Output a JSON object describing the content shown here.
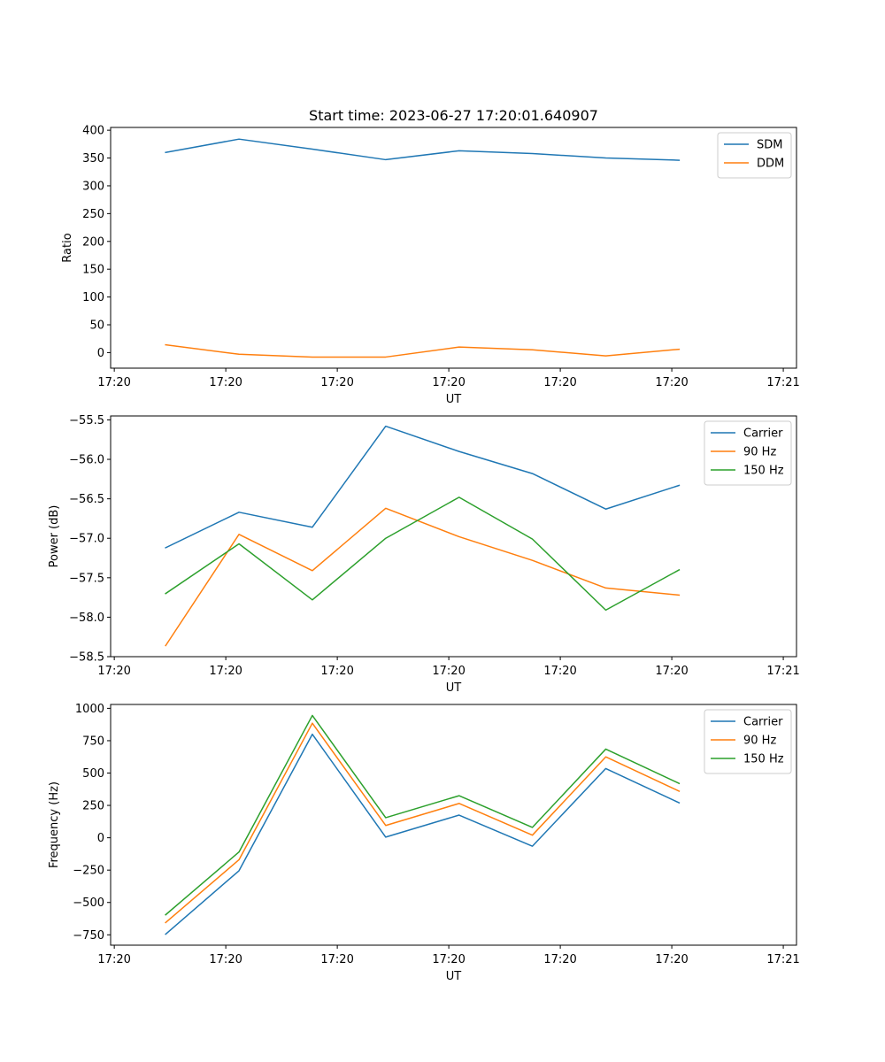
{
  "chart_data": [
    {
      "type": "line",
      "title": "Start time: 2023-06-27 17:20:01.640907",
      "xlabel": "UT",
      "ylabel": "Ratio",
      "x": [
        0,
        1,
        2,
        3,
        4,
        5,
        6,
        7
      ],
      "xlim": [
        -0.75,
        8.6
      ],
      "xticks": [
        -0.7,
        0.82,
        2.34,
        3.86,
        5.38,
        6.9,
        8.42
      ],
      "xtick_labels": [
        "17:20",
        "17:20",
        "17:20",
        "17:20",
        "17:20",
        "17:20",
        "17:21"
      ],
      "ylim": [
        -28,
        405
      ],
      "yticks": [
        0,
        50,
        100,
        150,
        200,
        250,
        300,
        350,
        400
      ],
      "ytick_labels": [
        "0",
        "50",
        "100",
        "150",
        "200",
        "250",
        "300",
        "350",
        "400"
      ],
      "legend_position": "top-right",
      "series": [
        {
          "name": "SDM",
          "color": "#1f77b4",
          "values": [
            360,
            384,
            366,
            347,
            363,
            358,
            350,
            346
          ]
        },
        {
          "name": "DDM",
          "color": "#ff7f0e",
          "values": [
            14,
            -3,
            -8,
            -8,
            10,
            5,
            -6,
            6
          ]
        }
      ]
    },
    {
      "type": "line",
      "title": "",
      "xlabel": "UT",
      "ylabel": "Power (dB)",
      "x": [
        0,
        1,
        2,
        3,
        4,
        5,
        6,
        7
      ],
      "xlim": [
        -0.75,
        8.6
      ],
      "xticks": [
        -0.7,
        0.82,
        2.34,
        3.86,
        5.38,
        6.9,
        8.42
      ],
      "xtick_labels": [
        "17:20",
        "17:20",
        "17:20",
        "17:20",
        "17:20",
        "17:20",
        "17:21"
      ],
      "ylim": [
        -58.5,
        -55.45
      ],
      "yticks": [
        -58.5,
        -58.0,
        -57.5,
        -57.0,
        -56.5,
        -56.0,
        -55.5
      ],
      "ytick_labels": [
        "−58.5",
        "−58.0",
        "−57.5",
        "−57.0",
        "−56.5",
        "−56.0",
        "−55.5"
      ],
      "legend_position": "top-right",
      "series": [
        {
          "name": "Carrier",
          "color": "#1f77b4",
          "values": [
            -57.12,
            -56.67,
            -56.86,
            -55.58,
            -55.9,
            -56.18,
            -56.63,
            -56.33
          ]
        },
        {
          "name": "90 Hz",
          "color": "#ff7f0e",
          "values": [
            -58.36,
            -56.95,
            -57.41,
            -56.62,
            -56.98,
            -57.28,
            -57.63,
            -57.72
          ]
        },
        {
          "name": "150 Hz",
          "color": "#2ca02c",
          "values": [
            -57.7,
            -57.07,
            -57.78,
            -57.0,
            -56.48,
            -57.01,
            -57.91,
            -57.4
          ]
        }
      ]
    },
    {
      "type": "line",
      "title": "",
      "xlabel": "UT",
      "ylabel": "Frequency (Hz)",
      "x": [
        0,
        1,
        2,
        3,
        4,
        5,
        6,
        7
      ],
      "xlim": [
        -0.75,
        8.6
      ],
      "xticks": [
        -0.7,
        0.82,
        2.34,
        3.86,
        5.38,
        6.9,
        8.42
      ],
      "xtick_labels": [
        "17:20",
        "17:20",
        "17:20",
        "17:20",
        "17:20",
        "17:20",
        "17:21"
      ],
      "ylim": [
        -830,
        1030
      ],
      "yticks": [
        -750,
        -500,
        -250,
        0,
        250,
        500,
        750,
        1000
      ],
      "ytick_labels": [
        "−750",
        "−500",
        "−250",
        "0",
        "250",
        "500",
        "750",
        "1000"
      ],
      "legend_position": "top-right",
      "series": [
        {
          "name": "Carrier",
          "color": "#1f77b4",
          "values": [
            -745,
            -255,
            800,
            5,
            175,
            -65,
            535,
            270
          ]
        },
        {
          "name": "90 Hz",
          "color": "#ff7f0e",
          "values": [
            -655,
            -170,
            885,
            95,
            265,
            20,
            625,
            360
          ]
        },
        {
          "name": "150 Hz",
          "color": "#2ca02c",
          "values": [
            -595,
            -110,
            945,
            155,
            325,
            80,
            685,
            420
          ]
        }
      ]
    }
  ]
}
